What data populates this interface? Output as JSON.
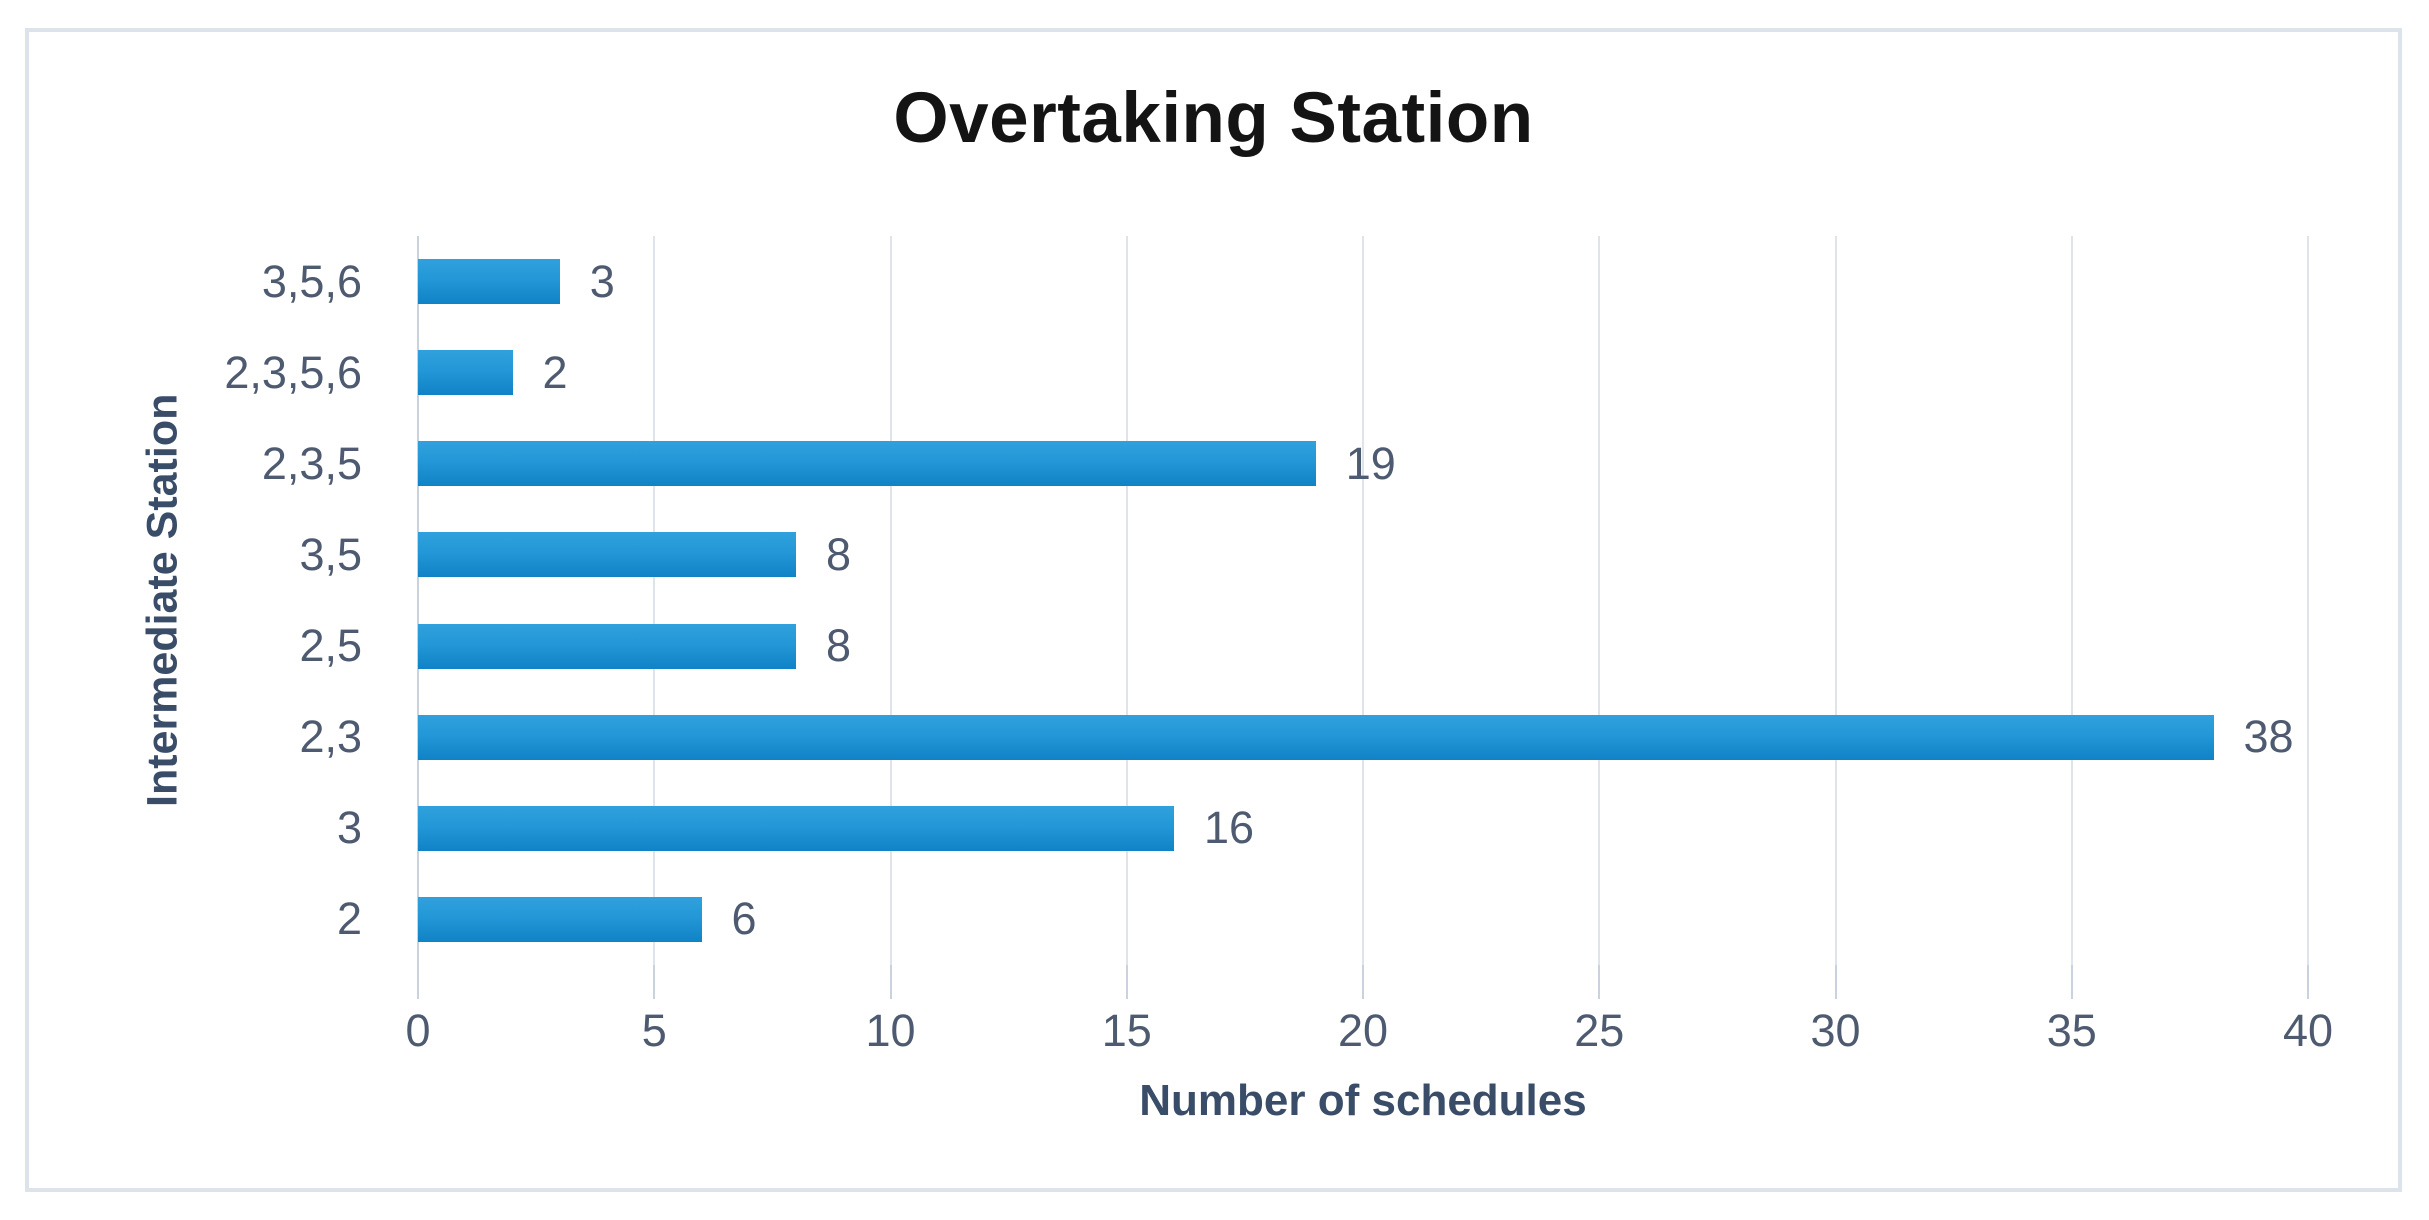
{
  "chart": {
    "title": "Overtaking Station",
    "x_axis_title": "Number of schedules",
    "y_axis_title": "Intermediate Station"
  },
  "chart_data": {
    "type": "bar",
    "orientation": "horizontal",
    "title": "Overtaking Station",
    "xlabel": "Number of schedules",
    "ylabel": "Intermediate Station",
    "categories": [
      "3,5,6",
      "2,3,5,6",
      "2,3,5",
      "3,5",
      "2,5",
      "2,3",
      "3",
      "2"
    ],
    "values": [
      3,
      2,
      19,
      8,
      8,
      38,
      16,
      6
    ],
    "xlim": [
      0,
      40
    ],
    "x_ticks": [
      0,
      5,
      10,
      15,
      20,
      25,
      30,
      35,
      40
    ],
    "grid": true,
    "legend": false,
    "data_labels": true,
    "colors": {
      "bar_top": "#30a1dc",
      "bar_mid": "#2397d7",
      "bar_bottom": "#1082c6",
      "gridline": "#dfe4ea",
      "tick": "#c9d2dd",
      "label_text": "#4d5a70",
      "axis_title_text": "#3a4d68",
      "title_text": "#141414",
      "frame_border": "#dce3eb",
      "background": "#ffffff"
    }
  }
}
